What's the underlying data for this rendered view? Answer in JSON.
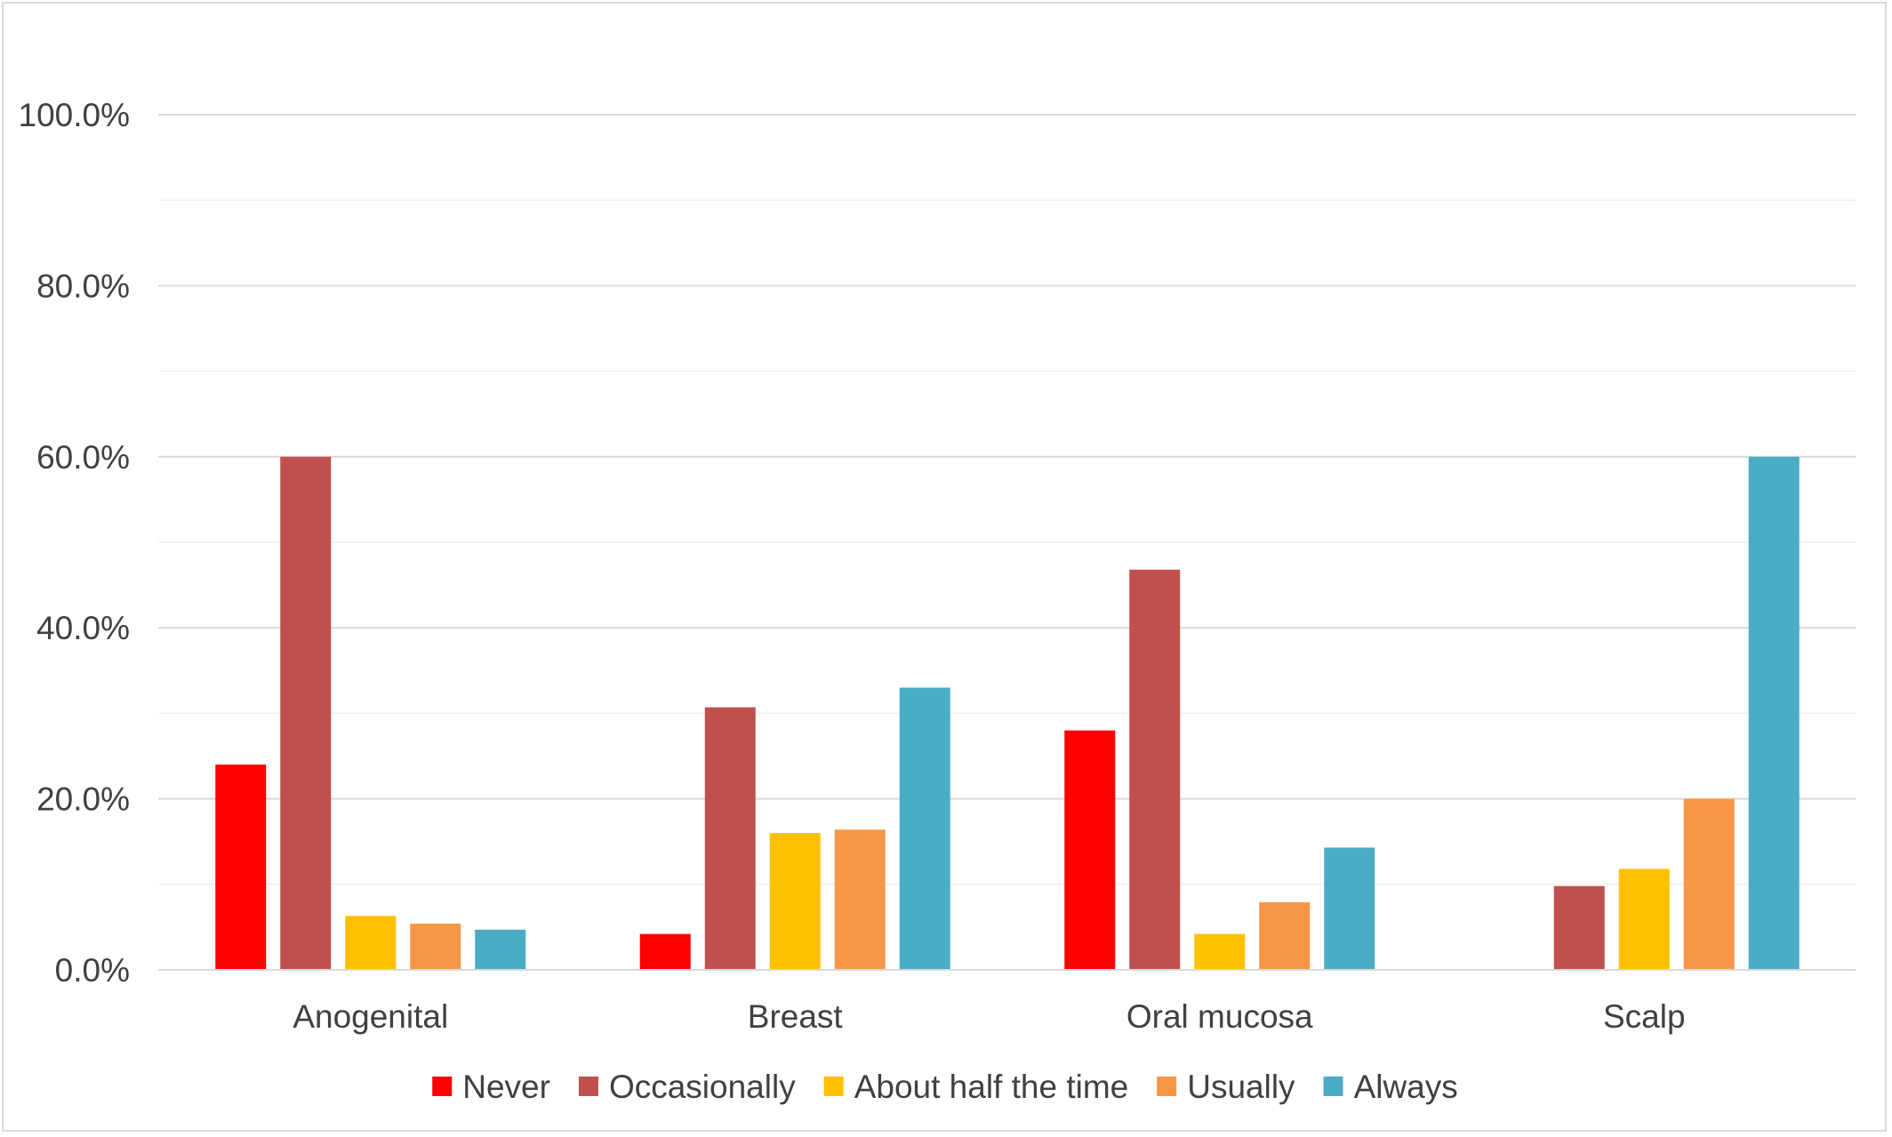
{
  "chart_data": {
    "type": "bar",
    "title": "",
    "xlabel": "",
    "ylabel": "",
    "categories": [
      "Anogenital",
      "Breast",
      "Oral mucosa",
      "Scalp"
    ],
    "series": [
      {
        "name": "Never",
        "color": "#ff0000",
        "values": [
          24.0,
          4.2,
          28.0,
          0.0
        ]
      },
      {
        "name": "Occasionally",
        "color": "#c0504d",
        "values": [
          60.0,
          30.7,
          46.8,
          9.8
        ]
      },
      {
        "name": "About half the time",
        "color": "#ffc000",
        "values": [
          6.3,
          16.0,
          4.2,
          11.8
        ]
      },
      {
        "name": "Usually",
        "color": "#f79646",
        "values": [
          5.4,
          16.4,
          7.9,
          20.0
        ]
      },
      {
        "name": "Always",
        "color": "#4bacc6",
        "values": [
          4.7,
          33.0,
          14.3,
          60.0
        ]
      }
    ],
    "ylim": [
      0,
      100
    ],
    "yticks": [
      0,
      20,
      40,
      60,
      80,
      100
    ],
    "ytick_labels": [
      "0.0%",
      "20.0%",
      "40.0%",
      "60.0%",
      "80.0%",
      "100.0%"
    ],
    "grid": true,
    "legend_position": "bottom"
  }
}
